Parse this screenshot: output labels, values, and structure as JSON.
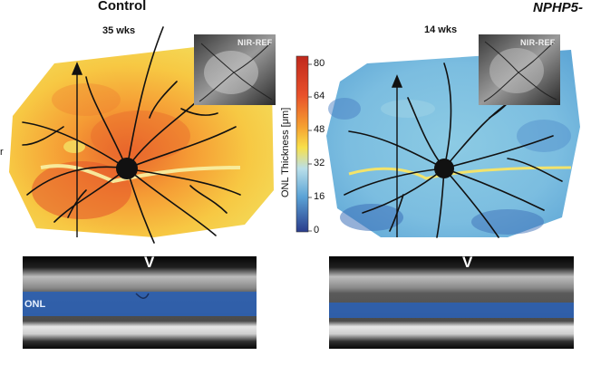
{
  "panels": {
    "left": {
      "title": "Control",
      "age": "35 wks",
      "inset_label": "NIR-REF",
      "bscan_label": "ONL",
      "marker": "V"
    },
    "right": {
      "title": "NPHP5-",
      "age": "14 wks",
      "inset_label": "NIR-REF",
      "marker": "V"
    }
  },
  "edge_fragment": "r",
  "colorbar": {
    "title": "ONL Thickness [μm]",
    "ticks": [
      "80",
      "64",
      "48",
      "32",
      "16",
      "0"
    ],
    "colors": {
      "high": "#c0281c",
      "upper": "#f08020",
      "mid": "#f8e04a",
      "lower": "#7fc4e0",
      "low": "#2a3c8c"
    }
  }
}
